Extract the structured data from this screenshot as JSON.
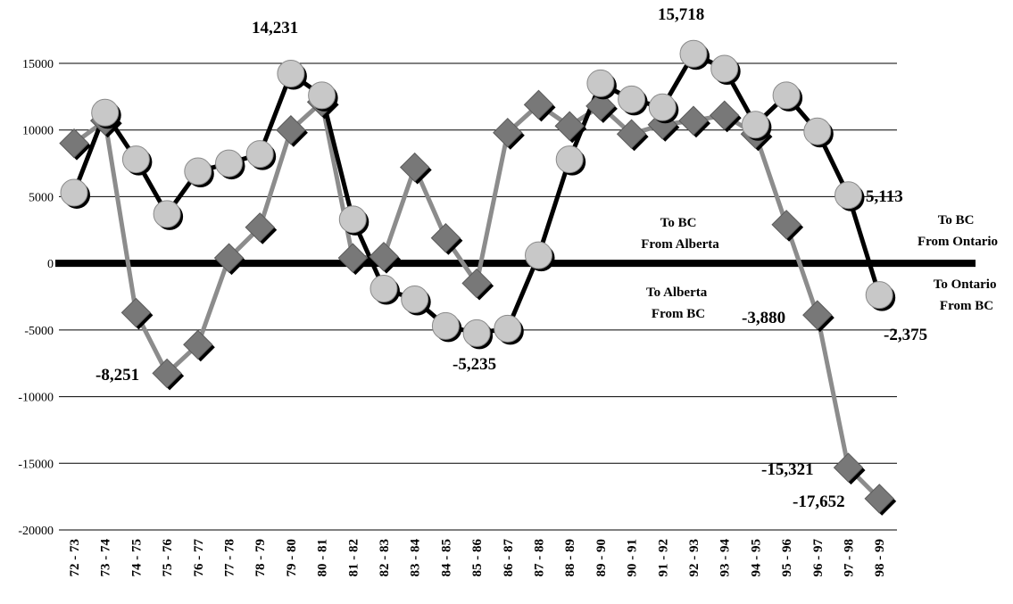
{
  "chart_data": {
    "type": "line",
    "title": "",
    "xlabel": "",
    "ylabel": "",
    "ylim": [
      -20000,
      15000
    ],
    "yticks": [
      15000,
      10000,
      5000,
      0,
      -5000,
      -10000,
      -15000,
      -20000
    ],
    "grid": true,
    "legend": "none",
    "categories": [
      "72 - 73",
      "73 - 74",
      "74 - 75",
      "75 - 76",
      "76 - 77",
      "77 - 78",
      "78 - 79",
      "79 - 80",
      "80 - 81",
      "81 - 82",
      "82 - 83",
      "83 - 84",
      "84 - 85",
      "85 - 86",
      "86 - 87",
      "87 - 88",
      "88 - 89",
      "89 - 90",
      "90 - 91",
      "91 - 92",
      "92 - 93",
      "93 - 94",
      "94 - 95",
      "95 - 96",
      "96 - 97",
      "97 - 98",
      "98 - 99"
    ],
    "series": [
      {
        "marker": "circle",
        "line_color": "#000000",
        "marker_color": "#c8c8c8",
        "values": [
          5300,
          11300,
          7800,
          3700,
          6900,
          7500,
          8200,
          14231,
          12600,
          3300,
          -1900,
          -2700,
          -4700,
          -5235,
          -4900,
          600,
          7800,
          13500,
          12300,
          11700,
          15718,
          14600,
          10400,
          12600,
          9900,
          5113,
          -2375
        ]
      },
      {
        "marker": "diamond",
        "line_color": "#8c8c8c",
        "marker_color": "#787878",
        "values": [
          9000,
          10700,
          -3700,
          -8251,
          -6100,
          400,
          2700,
          10000,
          12100,
          400,
          500,
          7200,
          1900,
          -1500,
          9800,
          11900,
          10300,
          11800,
          9700,
          10400,
          10700,
          11100,
          9700,
          2900,
          -3880,
          -15321,
          -17652
        ]
      }
    ],
    "annotations": [
      {
        "text": "14,231"
      },
      {
        "text": "15,718"
      },
      {
        "text": "-8,251"
      },
      {
        "text": "-5,235"
      },
      {
        "text": "5,113"
      },
      {
        "text": "-2,375"
      },
      {
        "text": "-3,880"
      },
      {
        "text": "-15,321"
      },
      {
        "text": "-17,652"
      }
    ],
    "region_labels": [
      {
        "line1": "To BC",
        "line2": "From Alberta"
      },
      {
        "line1": "To Alberta",
        "line2": "From BC"
      },
      {
        "line1": "To BC",
        "line2": "From Ontario"
      },
      {
        "line1": "To Ontario",
        "line2": "From BC"
      }
    ]
  }
}
